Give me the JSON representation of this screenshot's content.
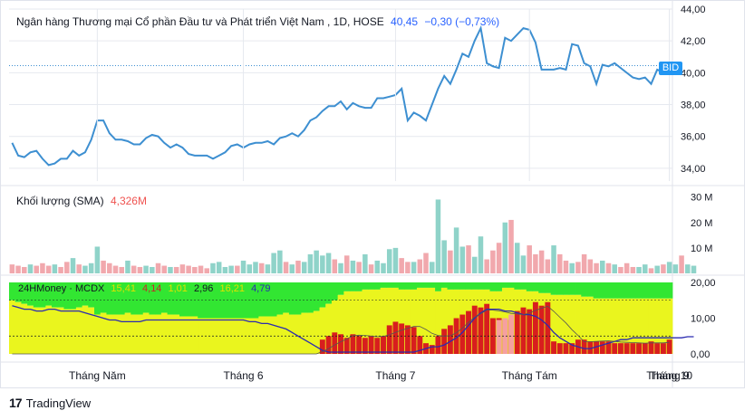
{
  "header": {
    "title": "Ngân hàng Thương mại Cổ phần Đầu tư và Phát triển Việt Nam , 1D, HOSE",
    "last_value": "40,45",
    "change": "−0,30 (−0,73%)"
  },
  "volume_header": {
    "label": "Khối lượng (SMA)",
    "value": "4,326M"
  },
  "indicator_header": {
    "label": "24HMoney · MCDX",
    "v1": "15,41",
    "v2": "4,14",
    "v3": "1,01",
    "v4": "2,96",
    "v5": "16,21",
    "v6": "4,79"
  },
  "price_tag": "BID",
  "footer": {
    "brand": "TradingView"
  },
  "colors": {
    "price_line": "#3d8fd1",
    "volume_up": "#8fd3c9",
    "volume_down": "#f1a8ad",
    "green": "#32e632",
    "yellow": "#eaf51e",
    "red": "#d81e1e",
    "pink": "#f5a0a0",
    "blue_line": "#2b2bb0",
    "purple_line": "#9b30c8",
    "grid": "#e6e9ef"
  },
  "chart_data": [
    {
      "type": "line",
      "name": "BID",
      "x_ticks": [
        "Tháng Năm",
        "Tháng 6",
        "Tháng 7",
        "Tháng Tám",
        "Tháng 9",
        "Tháng 10"
      ],
      "y_ticks": [
        "34,00",
        "36,00",
        "38,00",
        "40,00",
        "42,00",
        "44,00"
      ],
      "ylim": [
        33.2,
        44
      ],
      "values": [
        35.6,
        34.8,
        34.7,
        35.0,
        35.1,
        34.6,
        34.2,
        34.3,
        34.6,
        34.6,
        35.1,
        34.8,
        35.0,
        35.8,
        37.0,
        37.0,
        36.2,
        35.8,
        35.8,
        35.7,
        35.5,
        35.5,
        35.9,
        36.1,
        36.0,
        35.6,
        35.3,
        35.5,
        35.3,
        34.9,
        34.8,
        34.8,
        34.8,
        34.6,
        34.8,
        35.0,
        35.4,
        35.5,
        35.3,
        35.5,
        35.6,
        35.6,
        35.7,
        35.5,
        35.9,
        36.0,
        36.2,
        36.0,
        36.4,
        37.0,
        37.2,
        37.6,
        37.9,
        37.9,
        38.2,
        37.7,
        38.1,
        37.9,
        37.8,
        37.8,
        38.4,
        38.4,
        38.5,
        38.6,
        39.0,
        37.0,
        37.5,
        37.3,
        37.0,
        38.0,
        39.0,
        39.8,
        39.3,
        40.2,
        41.2,
        41.0,
        42.0,
        42.8,
        40.6,
        40.4,
        40.3,
        42.2,
        42.0,
        42.4,
        42.8,
        42.7,
        41.9,
        40.2,
        40.2,
        40.2,
        40.3,
        40.2,
        41.8,
        41.7,
        40.6,
        40.4,
        39.3,
        40.5,
        40.4,
        40.6,
        40.3,
        40.0,
        39.7,
        39.6,
        39.7,
        39.3,
        40.2,
        40.0,
        40.4
      ],
      "last": 40.45
    },
    {
      "type": "bar",
      "name": "Khối lượng",
      "y_ticks": [
        "10 M",
        "20 M",
        "30 M"
      ],
      "ylim": [
        0,
        32
      ],
      "values": [
        3.5,
        3.0,
        2.5,
        3.5,
        3.0,
        4.0,
        3.0,
        3.5,
        2.5,
        4.5,
        6.0,
        3.5,
        3.0,
        4.0,
        10.5,
        5.0,
        4.0,
        3.0,
        2.5,
        5.0,
        3.0,
        2.5,
        3.0,
        2.5,
        4.0,
        3.0,
        2.5,
        2.5,
        3.5,
        3.0,
        2.5,
        3.0,
        2.0,
        4.0,
        4.5,
        2.5,
        3.0,
        3.0,
        5.0,
        3.5,
        4.5,
        4.0,
        3.5,
        8.0,
        9.0,
        4.5,
        3.5,
        5.0,
        4.5,
        7.5,
        9.0,
        7.0,
        8.0,
        5.5,
        4.0,
        7.0,
        5.0,
        4.5,
        7.5,
        3.5,
        5.0,
        4.0,
        9.5,
        10.0,
        6.0,
        4.5,
        4.5,
        5.5,
        8.0,
        4.5,
        29.0,
        13.0,
        9.0,
        18.0,
        10.5,
        11.0,
        6.5,
        14.5,
        5.5,
        9.0,
        12.0,
        20.0,
        21.0,
        12.0,
        7.0,
        11.0,
        7.5,
        9.0,
        5.5,
        11.0,
        7.5,
        5.0,
        4.0,
        4.5,
        7.5,
        5.5,
        4.0,
        5.0,
        4.0,
        3.5,
        2.5,
        4.0,
        2.5,
        2.5,
        3.5,
        2.0,
        3.0,
        3.5,
        4.5,
        3.5,
        7.0,
        3.5,
        3.0
      ],
      "up": [
        false,
        false,
        false,
        true,
        false,
        false,
        false,
        true,
        false,
        false,
        true,
        false,
        true,
        true,
        true,
        false,
        false,
        false,
        false,
        true,
        false,
        false,
        true,
        true,
        false,
        false,
        true,
        false,
        false,
        false,
        false,
        false,
        false,
        true,
        true,
        true,
        true,
        false,
        true,
        true,
        true,
        false,
        true,
        true,
        true,
        false,
        true,
        false,
        true,
        true,
        true,
        true,
        true,
        false,
        true,
        false,
        true,
        false,
        true,
        false,
        true,
        true,
        true,
        true,
        false,
        false,
        true,
        false,
        false,
        true,
        true,
        true,
        false,
        true,
        true,
        false,
        true,
        true,
        false,
        false,
        false,
        true,
        false,
        true,
        true,
        false,
        false,
        false,
        false,
        true,
        false,
        false,
        true,
        false,
        false,
        false,
        false,
        true,
        false,
        true,
        false,
        false,
        false,
        true,
        true,
        false,
        true,
        false,
        true,
        true,
        false,
        true,
        true
      ]
    },
    {
      "type": "area",
      "name": "MCDX",
      "y_ticks": [
        "0,00",
        "10,00",
        "20,00"
      ],
      "ylim": [
        0,
        20
      ],
      "green_top": [
        20,
        20,
        20,
        20,
        20,
        20,
        20,
        20,
        20,
        20,
        20,
        20,
        20,
        20,
        20,
        20,
        20,
        20,
        20,
        20,
        20,
        20,
        20,
        20,
        20,
        20,
        20,
        20,
        20,
        20,
        20,
        20,
        20,
        20,
        20,
        20,
        20,
        20,
        20,
        20,
        20,
        20,
        20,
        20,
        20,
        20,
        20,
        20,
        20,
        20,
        20,
        20,
        20,
        20,
        20,
        20,
        20,
        20,
        20,
        20,
        20,
        20,
        20,
        20,
        20,
        20,
        20,
        20,
        20,
        20,
        20,
        20,
        20,
        20,
        20,
        20,
        20,
        20,
        20,
        20,
        20,
        20,
        20,
        20,
        20,
        20,
        20,
        20,
        20,
        20,
        20,
        20,
        20,
        20,
        20,
        20,
        20,
        20,
        20,
        20,
        20,
        20,
        20,
        20,
        20,
        20,
        20,
        20,
        20,
        20,
        20,
        20,
        20
      ],
      "yellow_top": [
        15.0,
        14.5,
        14.0,
        13.5,
        13.0,
        13.0,
        13.5,
        13.0,
        13.0,
        12.5,
        12.5,
        13.0,
        13.5,
        13.0,
        11.0,
        11.5,
        11.0,
        11.0,
        11.0,
        11.5,
        11.0,
        11.0,
        11.5,
        11.0,
        11.0,
        11.5,
        11.0,
        11.0,
        10.5,
        10.5,
        10.5,
        10.0,
        10.0,
        10.0,
        10.0,
        10.0,
        10.0,
        10.0,
        10.0,
        10.0,
        10.0,
        10.5,
        10.5,
        10.5,
        11.0,
        11.5,
        11.0,
        11.0,
        11.5,
        11.5,
        12.0,
        13.0,
        14.0,
        15.0,
        16.5,
        17.5,
        17.5,
        17.5,
        18.0,
        18.0,
        18.0,
        18.5,
        18.5,
        18.5,
        18.0,
        18.0,
        18.0,
        18.5,
        18.5,
        18.5,
        17.5,
        18.5,
        18.0,
        18.0,
        18.0,
        18.0,
        18.0,
        18.0,
        18.0,
        17.5,
        17.5,
        18.5,
        18.5,
        18.0,
        18.0,
        17.5,
        17.5,
        17.0,
        17.0,
        16.5,
        16.5,
        16.5,
        16.5,
        16.5,
        16.0,
        16.0,
        15.5,
        15.5,
        15.5,
        15.5,
        15.5,
        15.5,
        15.5,
        15.5,
        15.5,
        15.5,
        15.5,
        15.5,
        15.5,
        15.5,
        15.5,
        15.5,
        15.5
      ],
      "red": [
        0,
        0,
        0,
        0,
        0,
        0,
        0,
        0,
        0,
        0,
        0,
        0,
        0,
        0,
        0,
        0,
        0,
        0,
        0,
        0,
        0,
        0,
        0,
        0,
        0,
        0,
        0,
        0,
        0,
        0,
        0,
        0,
        0,
        0,
        0,
        0,
        0,
        0,
        0,
        0,
        0,
        0,
        0,
        0,
        0,
        0,
        0,
        0,
        0,
        0,
        0,
        4.0,
        5.0,
        6.0,
        5.5,
        4.5,
        5.5,
        5.0,
        4.5,
        5.0,
        4.5,
        5.0,
        8.0,
        9.0,
        8.5,
        8.0,
        7.5,
        5.0,
        3.0,
        2.5,
        5.0,
        7.0,
        8.0,
        10.0,
        11.0,
        12.0,
        13.5,
        13.0,
        14.0,
        10.0,
        10.0,
        9.5,
        9.5,
        12.0,
        13.0,
        12.5,
        14.5,
        13.5,
        14.5,
        3.5,
        3.0,
        3.0,
        3.0,
        4.0,
        4.0,
        3.5,
        3.5,
        3.5,
        3.5,
        3.0,
        3.0,
        3.0,
        3.0,
        3.0,
        3.0,
        3.5,
        3.0,
        3.0,
        4.0,
        3.5,
        4.5,
        4.0,
        4.5
      ],
      "pink": [
        0,
        0,
        0,
        0,
        0,
        0,
        0,
        0,
        0,
        0,
        0,
        0,
        0,
        0,
        0,
        0,
        0,
        0,
        0,
        0,
        0,
        0,
        0,
        0,
        0,
        0,
        0,
        0,
        0,
        0,
        0,
        0,
        0,
        0,
        0,
        0,
        0,
        0,
        0,
        0,
        0,
        0,
        0,
        0,
        0,
        0,
        0,
        0,
        0,
        0,
        0,
        0,
        0,
        0,
        0,
        0,
        0,
        0,
        0,
        0,
        0,
        0,
        0,
        0,
        0,
        0,
        0,
        0,
        0,
        0,
        0,
        0,
        0,
        0,
        0,
        0,
        0,
        0,
        0,
        0,
        9.5,
        10.0,
        11.0,
        0,
        0,
        0,
        0,
        0,
        0,
        0,
        0,
        0,
        0,
        0,
        0,
        0,
        0,
        0,
        0,
        0,
        0,
        0,
        0,
        0,
        0,
        0,
        0,
        0,
        0,
        0,
        0,
        0,
        0
      ],
      "blue_line": [
        13.5,
        13.0,
        12.5,
        12.5,
        12.0,
        12.0,
        12.5,
        12.5,
        12.0,
        12.0,
        12.0,
        12.0,
        11.5,
        11.0,
        10.5,
        10.0,
        9.5,
        9.5,
        9.0,
        9.0,
        9.0,
        9.0,
        9.5,
        9.5,
        9.5,
        9.5,
        9.5,
        9.5,
        9.5,
        9.5,
        9.5,
        9.5,
        9.5,
        9.5,
        9.5,
        9.5,
        9.5,
        9.5,
        9.5,
        9.0,
        9.0,
        8.5,
        8.5,
        8.0,
        7.5,
        7.0,
        6.0,
        5.0,
        4.0,
        3.0,
        2.0,
        1.0,
        0.5,
        0.5,
        0.5,
        0.5,
        0.5,
        0.5,
        0.5,
        0.5,
        0.5,
        0.5,
        0.5,
        0.5,
        0.5,
        0.5,
        0.5,
        1.0,
        1.5,
        2.0,
        2.0,
        2.5,
        3.5,
        4.5,
        6.0,
        8.0,
        10.0,
        11.5,
        12.5,
        12.5,
        12.5,
        12.0,
        12.0,
        11.5,
        11.0,
        11.0,
        10.5,
        9.5,
        8.0,
        6.0,
        4.5,
        3.5,
        2.5,
        2.0,
        1.5,
        1.5,
        2.0,
        2.5,
        3.0,
        3.5,
        4.0,
        4.0,
        4.5,
        4.5,
        4.5,
        4.5,
        4.5,
        4.5,
        4.5,
        4.5,
        4.5,
        4.8,
        4.8
      ]
    }
  ]
}
